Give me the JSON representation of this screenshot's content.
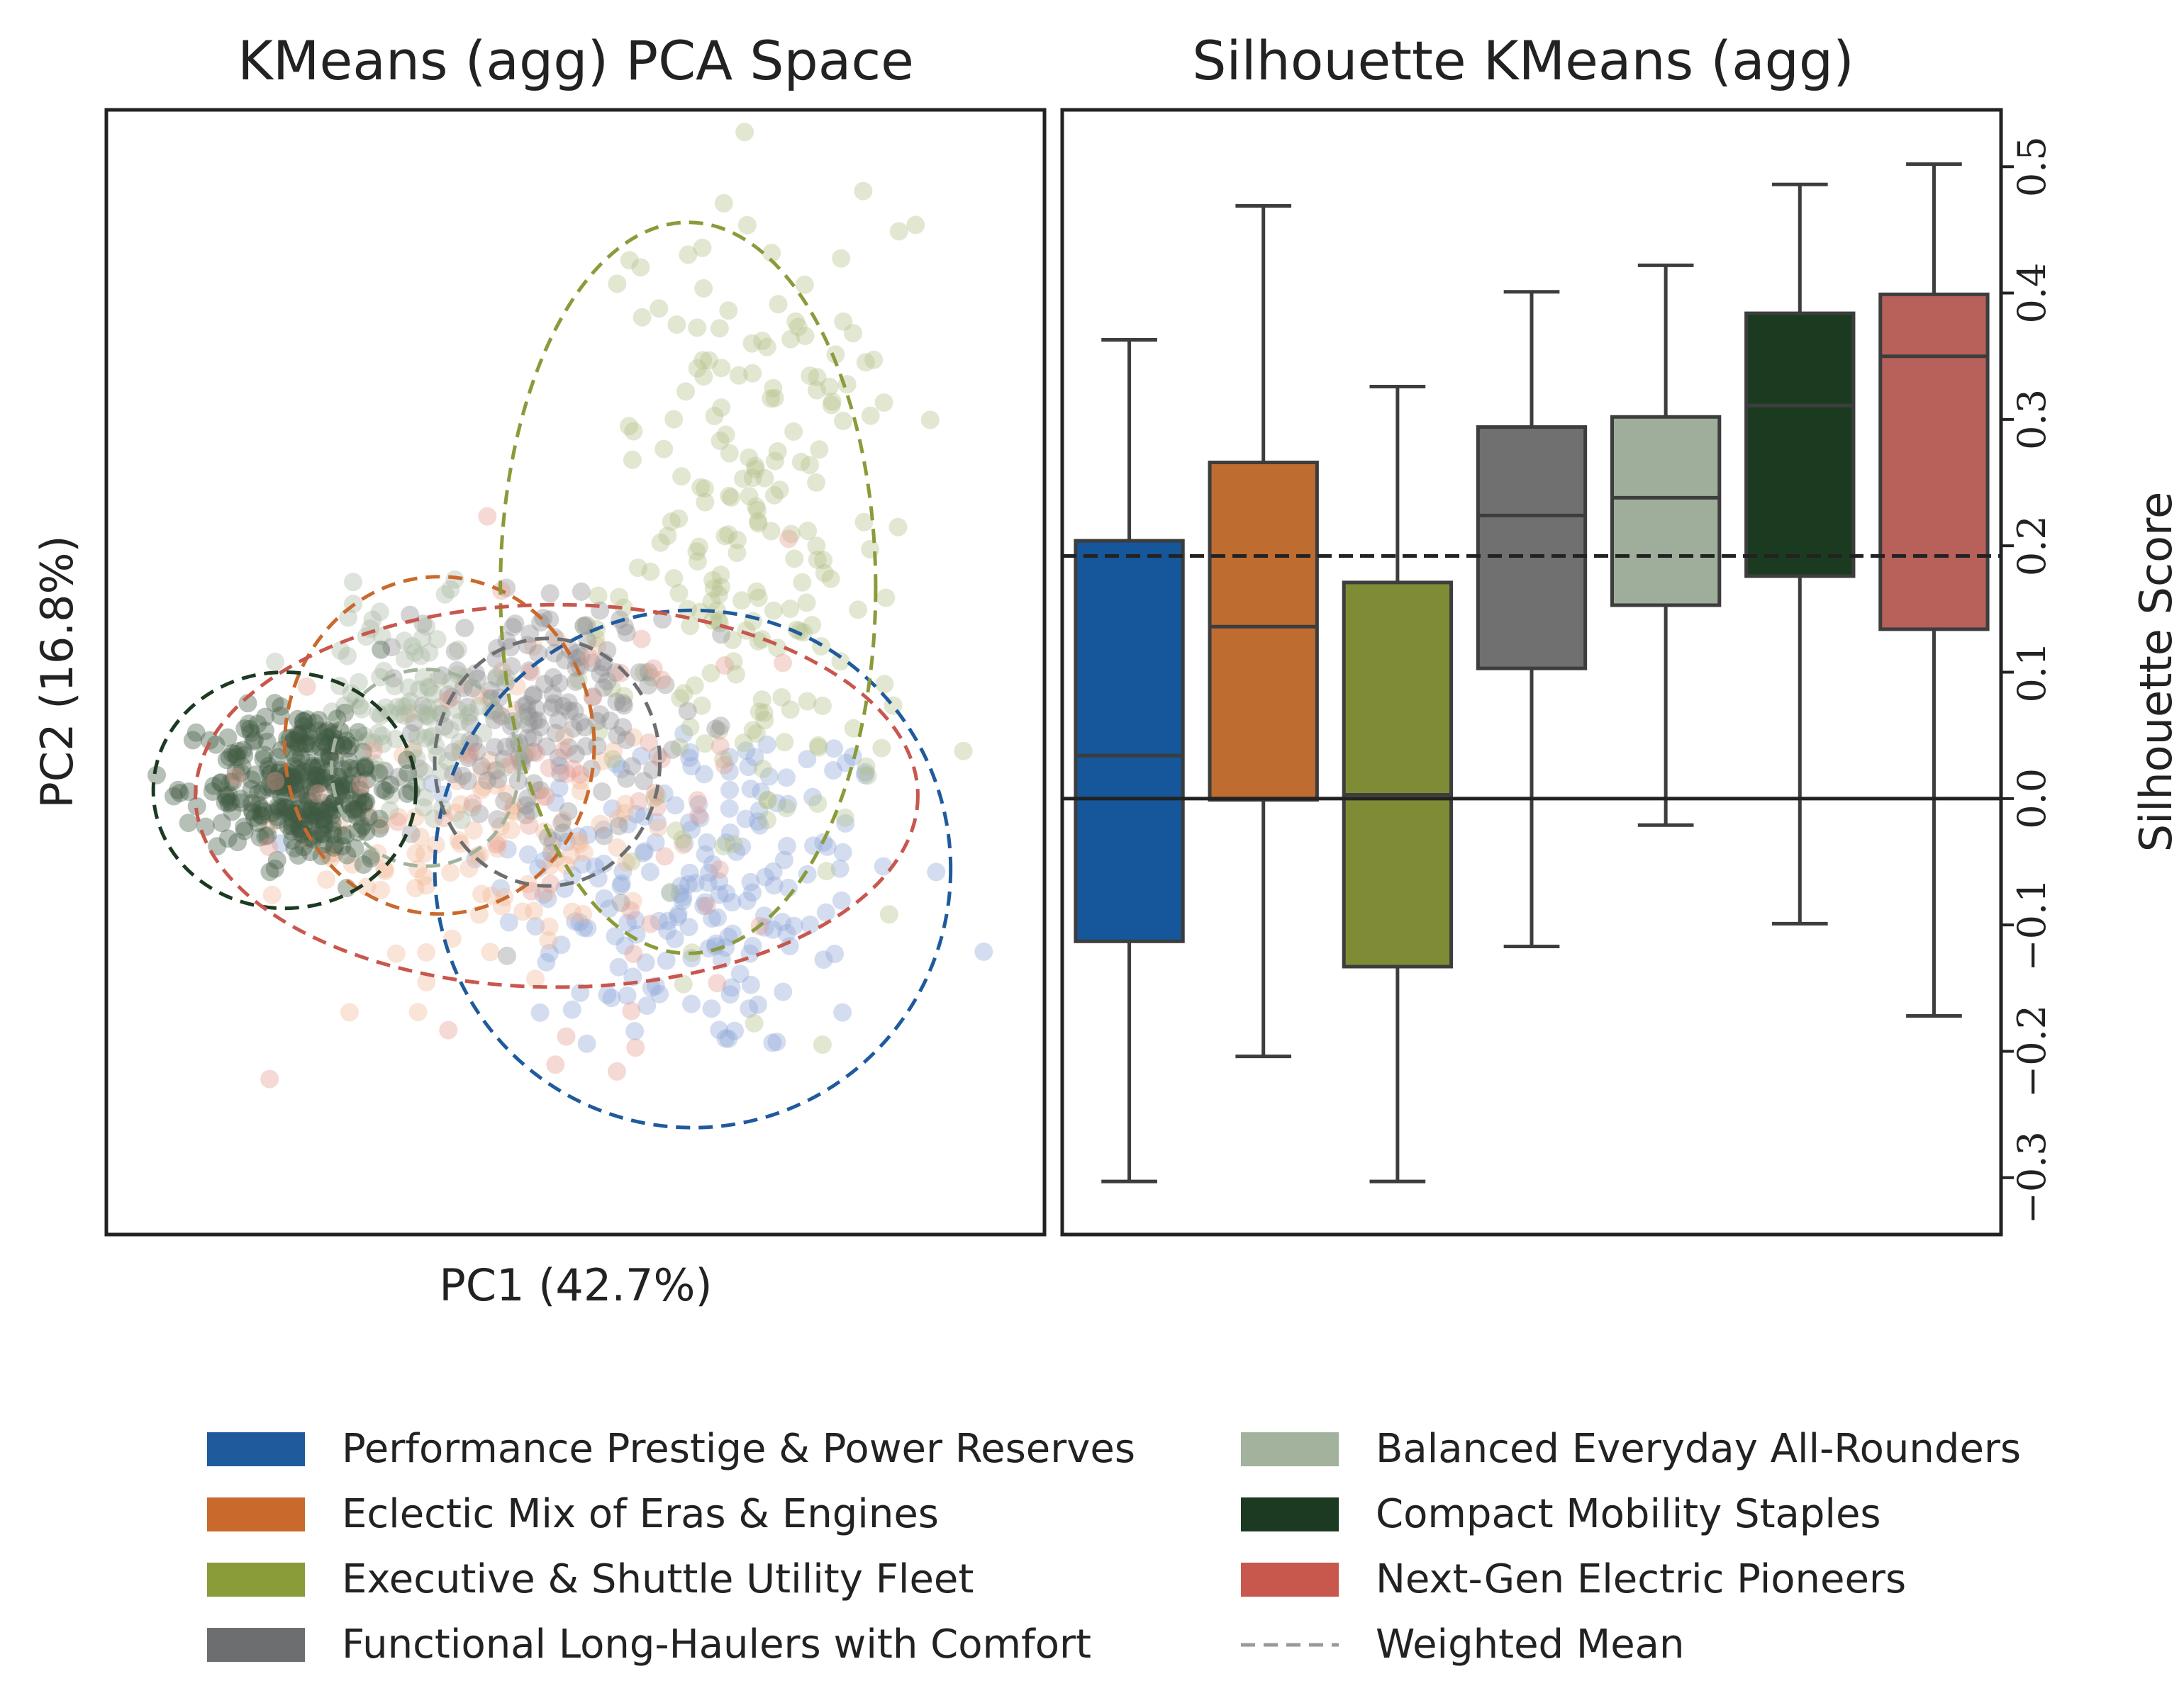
{
  "figure": {
    "left_title": "KMeans (agg) PCA Space",
    "right_title": "Silhouette KMeans (agg)",
    "pca_xlabel": "PC1 (42.7%)",
    "pca_ylabel": "PC2 (16.8%)",
    "sil_ylabel": "Silhouette Score"
  },
  "legend": {
    "entries": [
      {
        "label": "Performance Prestige & Power Reserves",
        "color": "#1f5b9c",
        "kind": "patch"
      },
      {
        "label": "Eclectic Mix of Eras & Engines",
        "color": "#c96a2c",
        "kind": "patch"
      },
      {
        "label": "Executive & Shuttle Utility Fleet",
        "color": "#8a9b3a",
        "kind": "patch"
      },
      {
        "label": "Functional Long-Haulers with Comfort",
        "color": "#6d6e70",
        "kind": "patch"
      },
      {
        "label": "Balanced Everyday All-Rounders",
        "color": "#a2b29c",
        "kind": "patch"
      },
      {
        "label": "Compact Mobility Staples",
        "color": "#1c3a22",
        "kind": "patch"
      },
      {
        "label": "Next-Gen Electric Pioneers",
        "color": "#c8574d",
        "kind": "patch"
      },
      {
        "label": "Weighted Mean",
        "color": "#999999",
        "kind": "dashed"
      }
    ]
  },
  "chart_data": [
    {
      "type": "scatter",
      "title": "KMeans (agg) PCA Space",
      "xlabel": "PC1 (42.7%)",
      "ylabel": "PC2 (16.8%)",
      "xlim": [
        -5.0,
        5.0
      ],
      "ylim": [
        -4.0,
        6.0
      ],
      "clusters": [
        {
          "name": "Performance Prestige & Power Reserves",
          "color": "#1f5b9c",
          "scatter_color": "#8fa6d8",
          "center": [
            1.3,
            -0.9
          ],
          "spread": [
            1.1,
            0.8
          ],
          "n": 200,
          "ellipse": {
            "center": [
              1.25,
              -0.75
            ],
            "width": 5.5,
            "height": 4.6
          }
        },
        {
          "name": "Eclectic Mix of Eras & Engines",
          "color": "#c96a2c",
          "scatter_color": "#f3b995",
          "center": [
            -1.0,
            -0.4
          ],
          "spread": [
            0.9,
            0.7
          ],
          "n": 120,
          "ellipse": {
            "center": [
              -1.45,
              0.35
            ],
            "width": 3.3,
            "height": 3.0
          }
        },
        {
          "name": "Executive & Shuttle Utility Fleet",
          "color": "#8a9b3a",
          "scatter_color": "#b4c08a",
          "center": [
            1.9,
            2.0
          ],
          "spread": [
            0.8,
            1.5
          ],
          "n": 220,
          "ellipse": {
            "center": [
              1.2,
              1.75
            ],
            "width": 4.0,
            "height": 6.5
          }
        },
        {
          "name": "Functional Long-Haulers with Comfort",
          "color": "#6d6e70",
          "scatter_color": "#8e8f93",
          "center": [
            -0.4,
            0.6
          ],
          "spread": [
            0.65,
            0.55
          ],
          "n": 180,
          "ellipse": {
            "center": [
              -0.3,
              0.2
            ],
            "width": 2.4,
            "height": 2.2
          }
        },
        {
          "name": "Balanced Everyday All-Rounders",
          "color": "#a2b29c",
          "scatter_color": "#a8b7a1",
          "center": [
            -1.8,
            0.6
          ],
          "spread": [
            0.55,
            0.5
          ],
          "n": 120,
          "ellipse": {
            "center": [
              -1.6,
              0.15
            ],
            "width": 2.0,
            "height": 1.75
          }
        },
        {
          "name": "Compact Mobility Staples",
          "color": "#1c3a22",
          "scatter_color": "#3f5a42",
          "center": [
            -2.9,
            0.0
          ],
          "spread": [
            0.5,
            0.35
          ],
          "n": 320,
          "ellipse": {
            "center": [
              -3.1,
              -0.05
            ],
            "width": 2.8,
            "height": 2.1
          }
        },
        {
          "name": "Next-Gen Electric Pioneers",
          "color": "#c8574d",
          "scatter_color": "#e59a90",
          "center": [
            0.0,
            0.0
          ],
          "spread": [
            1.6,
            1.1
          ],
          "n": 60,
          "ellipse": {
            "center": [
              -0.2,
              -0.1
            ],
            "width": 7.7,
            "height": 3.4
          }
        }
      ]
    },
    {
      "type": "box",
      "title": "Silhouette KMeans (agg)",
      "ylabel": "Silhouette Score",
      "ylim": [
        -0.345,
        0.545
      ],
      "yticks": [
        -0.3,
        -0.2,
        -0.1,
        0.0,
        0.1,
        0.2,
        0.3,
        0.4,
        0.5
      ],
      "ytick_labels": [
        "−0.3",
        "−0.2",
        "−0.1",
        "0.0",
        "0.1",
        "0.2",
        "0.3",
        "0.4",
        "0.5"
      ],
      "weighted_mean": 0.192,
      "zero_line": 0.0,
      "boxes": [
        {
          "name": "Performance Prestige & Power Reserves",
          "color": "#15579a",
          "whisker_low": -0.303,
          "q1": -0.113,
          "median": 0.034,
          "q3": 0.204,
          "whisker_high": 0.363
        },
        {
          "name": "Eclectic Mix of Eras & Engines",
          "color": "#bf6c30",
          "whisker_low": -0.204,
          "q1": -0.001,
          "median": 0.136,
          "q3": 0.266,
          "whisker_high": 0.469
        },
        {
          "name": "Executive & Shuttle Utility Fleet",
          "color": "#7f8c35",
          "whisker_low": -0.303,
          "q1": -0.133,
          "median": 0.003,
          "q3": 0.171,
          "whisker_high": 0.326
        },
        {
          "name": "Functional Long-Haulers with Comfort",
          "color": "#707070",
          "whisker_low": -0.117,
          "q1": 0.103,
          "median": 0.224,
          "q3": 0.294,
          "whisker_high": 0.401
        },
        {
          "name": "Balanced Everyday All-Rounders",
          "color": "#9eae9a",
          "whisker_low": -0.021,
          "q1": 0.153,
          "median": 0.238,
          "q3": 0.302,
          "whisker_high": 0.422
        },
        {
          "name": "Compact Mobility Staples",
          "color": "#1b3b20",
          "whisker_low": -0.099,
          "q1": 0.176,
          "median": 0.311,
          "q3": 0.384,
          "whisker_high": 0.486
        },
        {
          "name": "Next-Gen Electric Pioneers",
          "color": "#b8605a",
          "whisker_low": -0.172,
          "q1": 0.134,
          "median": 0.35,
          "q3": 0.399,
          "whisker_high": 0.502
        }
      ]
    }
  ]
}
